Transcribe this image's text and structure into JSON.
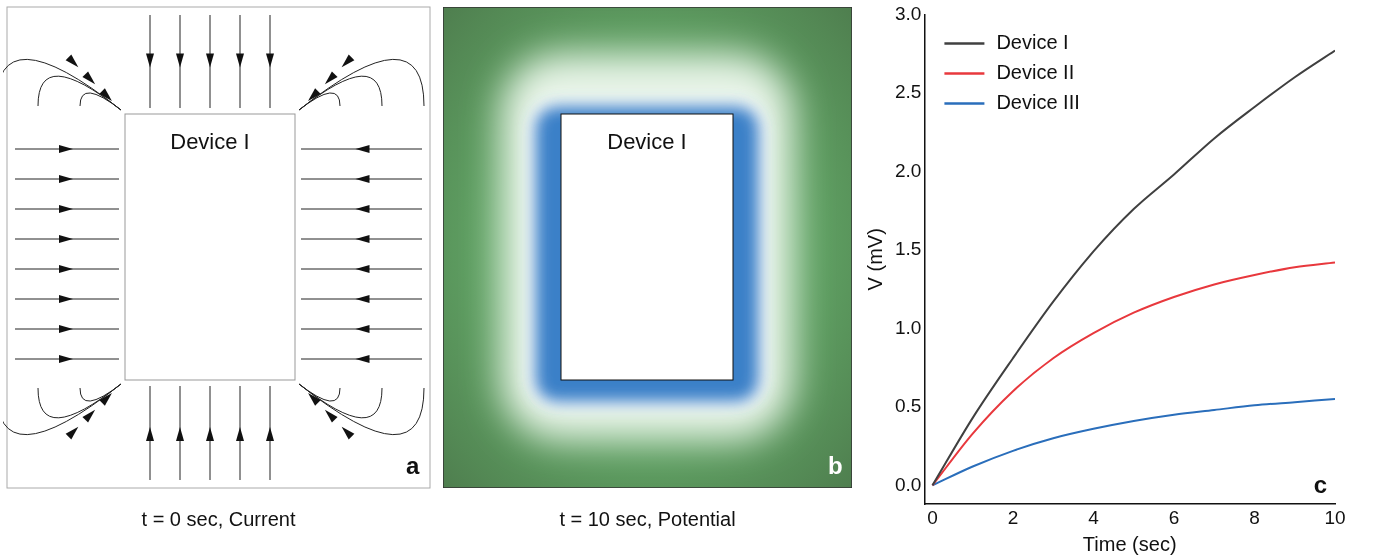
{
  "chart_data": [
    {
      "type": "other",
      "title": "t = 0 sec, Current",
      "annotations": [
        "Device I",
        "a"
      ]
    },
    {
      "type": "other",
      "title": "t = 10 sec, Potential",
      "annotations": [
        "Device I",
        "b"
      ]
    },
    {
      "type": "line",
      "xlabel": "Time (sec)",
      "ylabel": "V (mV)",
      "x": [
        0,
        1,
        2,
        3,
        4,
        5,
        6,
        7,
        8,
        9,
        10
      ],
      "series": [
        {
          "name": "Device I",
          "color": "#404040",
          "values": [
            0,
            0.43,
            0.81,
            1.17,
            1.49,
            1.76,
            1.98,
            2.21,
            2.41,
            2.6,
            2.77
          ]
        },
        {
          "name": "Device II",
          "color": "#e8383d",
          "values": [
            0,
            0.33,
            0.6,
            0.81,
            0.97,
            1.1,
            1.2,
            1.28,
            1.34,
            1.39,
            1.42
          ]
        },
        {
          "name": "Device III",
          "color": "#2a6ebb",
          "values": [
            0,
            0.12,
            0.22,
            0.3,
            0.36,
            0.41,
            0.45,
            0.48,
            0.51,
            0.53,
            0.55
          ]
        }
      ],
      "xlim": [
        -0.2,
        10
      ],
      "xticks": [
        0,
        2,
        4,
        6,
        8,
        10
      ],
      "ylim": [
        -0.12,
        3.0
      ],
      "yticks": [
        {
          "value": 0,
          "label": "0.0"
        },
        {
          "value": 0.5,
          "label": "0.5"
        },
        {
          "value": 1,
          "label": "1.0"
        },
        {
          "value": 1.5,
          "label": "1.5"
        },
        {
          "value": 2,
          "label": "2.0"
        },
        {
          "value": 2.5,
          "label": "2.5"
        },
        {
          "value": 3,
          "label": "3.0"
        }
      ],
      "legend": "top left",
      "annotations": [
        "c"
      ]
    }
  ]
}
